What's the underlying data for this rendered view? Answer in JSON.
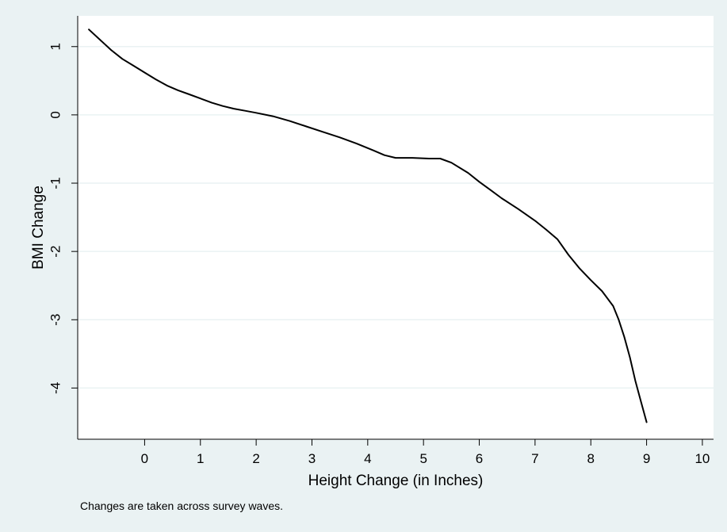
{
  "colors": {
    "outer_background": "#eaf2f3",
    "plot_background": "#ffffff",
    "grid": "#eaf2f3",
    "line": "#000000"
  },
  "chart_data": {
    "type": "line",
    "title": "",
    "xlabel": "Height Change (in Inches)",
    "ylabel": "BMI Change",
    "note": "Changes are taken across survey waves.",
    "xlim": [
      -1.2,
      10.2
    ],
    "ylim": [
      -4.75,
      1.45
    ],
    "x_ticks": [
      0,
      1,
      2,
      3,
      4,
      5,
      6,
      7,
      8,
      9,
      10
    ],
    "y_ticks": [
      1,
      0,
      -1,
      -2,
      -3,
      -4
    ],
    "grid": true,
    "legend": "none",
    "series": [
      {
        "x": [
          -1.0,
          -0.8,
          -0.6,
          -0.4,
          -0.2,
          0.0,
          0.2,
          0.4,
          0.6,
          0.8,
          1.0,
          1.2,
          1.4,
          1.6,
          1.8,
          2.0,
          2.3,
          2.6,
          2.9,
          3.2,
          3.5,
          3.8,
          4.1,
          4.3,
          4.5,
          4.8,
          5.1,
          5.3,
          5.5,
          5.8,
          6.0,
          6.2,
          6.4,
          6.7,
          7.0,
          7.2,
          7.4,
          7.6,
          7.8,
          8.0,
          8.2,
          8.4,
          8.5,
          8.6,
          8.7,
          8.8,
          8.9,
          9.0
        ],
        "y": [
          1.25,
          1.1,
          0.95,
          0.82,
          0.72,
          0.62,
          0.52,
          0.43,
          0.36,
          0.3,
          0.24,
          0.18,
          0.13,
          0.09,
          0.06,
          0.03,
          -0.02,
          -0.09,
          -0.17,
          -0.25,
          -0.33,
          -0.42,
          -0.52,
          -0.59,
          -0.63,
          -0.63,
          -0.64,
          -0.64,
          -0.7,
          -0.85,
          -0.98,
          -1.1,
          -1.22,
          -1.38,
          -1.55,
          -1.68,
          -1.82,
          -2.05,
          -2.25,
          -2.42,
          -2.58,
          -2.8,
          -3.0,
          -3.25,
          -3.55,
          -3.9,
          -4.2,
          -4.5
        ]
      }
    ]
  }
}
